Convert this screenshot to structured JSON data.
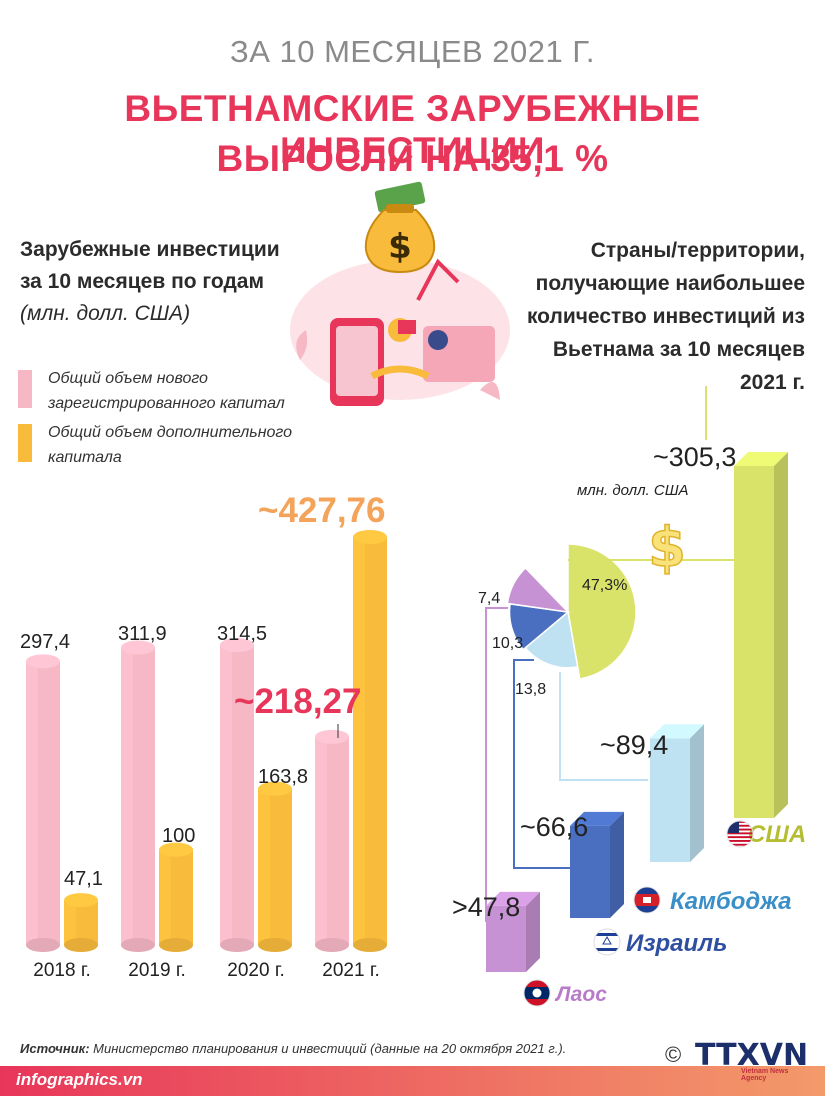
{
  "header": {
    "period": "ЗА 10 МЕСЯЦЕВ 2021 Г.",
    "title_line1": "ВЬЕТНАМСКИЕ ЗАРУБЕЖНЫЕ ИНВЕСТИЦИИ",
    "title_line2": "ВЫРОСЛИ НА  35,1 %"
  },
  "left_panel": {
    "heading_line1": "Зарубежные инвестиции",
    "heading_line2": "за 10 месяцев по годам",
    "unit": "(млн. долл. США)",
    "legend": [
      {
        "label_line1": "Общий объем нового",
        "label_line2": "зарегистрированного капитал",
        "color": "#f7b8c6"
      },
      {
        "label_line1": "Общий объем дополнительного",
        "label_line2": "капитала",
        "color": "#f9bb3c"
      }
    ]
  },
  "right_panel": {
    "heading_lines": [
      "Страны/территории,",
      "получающие наибольшее",
      "количество инвестиций из",
      "Вьетнама за 10 месяцев",
      "2021 г."
    ]
  },
  "chart_data": [
    {
      "type": "bar",
      "categories": [
        "2018 г.",
        "2019 г.",
        "2020 г.",
        "2021 г."
      ],
      "series": [
        {
          "name": "Общий объем нового зарегистрированного капитал",
          "values": [
            297.4,
            311.9,
            314.5,
            218.27
          ],
          "labels": [
            "297,4",
            "311,9",
            "314,5",
            "~218,27"
          ],
          "color": "#f7b8c6"
        },
        {
          "name": "Общий объем дополнительного капитала",
          "values": [
            47.1,
            100,
            163.8,
            427.76
          ],
          "labels": [
            "47,1",
            "100",
            "163,8",
            "~427,76"
          ],
          "color": "#f9bb3c"
        }
      ],
      "ylim": [
        0,
        450
      ]
    },
    {
      "type": "bar",
      "categories": [
        "США",
        "Камбоджа",
        "Израиль",
        "Лаос"
      ],
      "values": [
        305.3,
        89.4,
        66.6,
        47.8
      ],
      "labels": [
        "~305,3",
        "~89,4",
        "~66,6",
        ">47,8"
      ],
      "unit_label": "млн. долл. США",
      "colors": [
        "#d9e36a",
        "#bfe2f2",
        "#4a6fc1",
        "#c792d3"
      ]
    },
    {
      "type": "pie",
      "categories": [
        "США",
        "Камбоджа",
        "Израиль",
        "Лаос"
      ],
      "values": [
        47.3,
        13.8,
        10.3,
        7.4
      ],
      "labels": [
        "47,3%",
        "13,8",
        "10,3",
        "7,4"
      ],
      "colors": [
        "#d9e36a",
        "#bfe2f2",
        "#4a6fc1",
        "#c792d3"
      ]
    }
  ],
  "footer": {
    "source_label": "Источник:",
    "source_text": " Министерство планирования и инвестиций (данные на 20 октября 2021 г.).",
    "site": "infographics.vn",
    "copyright": "©",
    "agency": "TTXVN",
    "agency_sub": "Vietnam News Agency"
  },
  "icons": [
    "money-bag-icon",
    "dollar-sign-icon",
    "handshake-illustration",
    "usa-flag-icon",
    "cambodia-flag-icon",
    "israel-flag-icon",
    "laos-flag-icon"
  ]
}
